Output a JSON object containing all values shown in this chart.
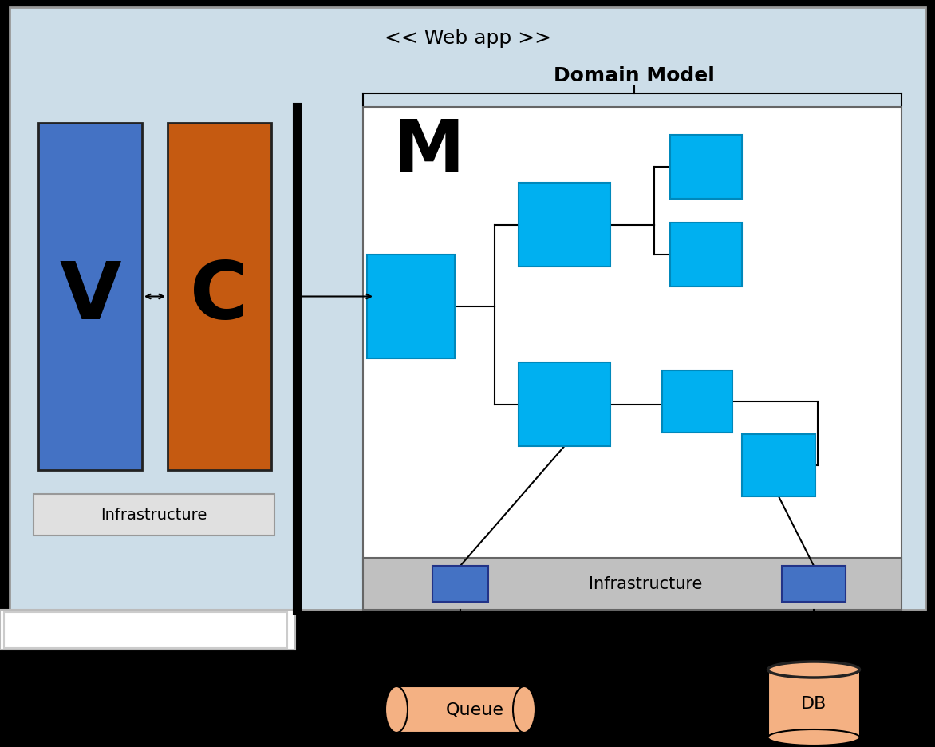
{
  "bg_color": "#000000",
  "webapp_bg": "#ccdde8",
  "webapp_border": "#888888",
  "webapp_label": "<< Web app >>",
  "domain_label": "Domain Model",
  "model_box_bg": "#ffffff",
  "model_box_border": "#555555",
  "infra_bg": "#c0c0c0",
  "infra_border": "#555555",
  "infra_label": "Infrastructure",
  "v_color": "#4472c4",
  "c_color": "#c55a11",
  "cyan_color": "#00b0f0",
  "blue_small": "#4472c4",
  "peach_color": "#f4b183",
  "v_label": "V",
  "c_label": "C",
  "m_label": "M",
  "queue_label": "Queue",
  "db_label": "DB",
  "left_infra_label": "Infrastructure"
}
